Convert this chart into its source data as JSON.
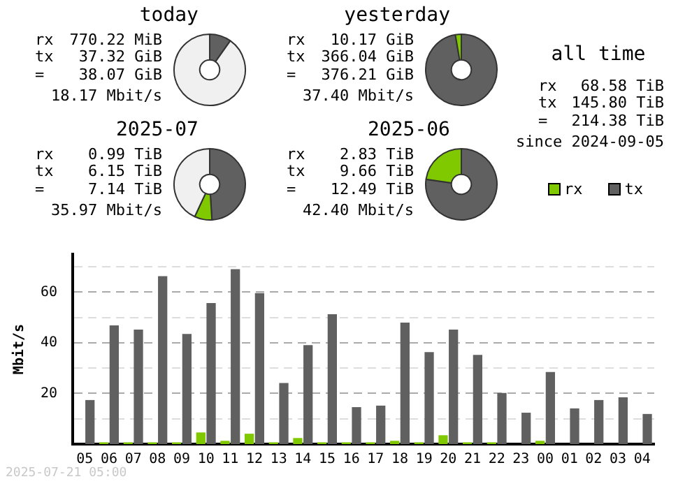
{
  "chart_data": [
    {
      "type": "donut",
      "title": "today",
      "categories": [
        null,
        null,
        null
      ],
      "values": [
        9.8,
        null,
        90
      ],
      "colors": [
        "#606060",
        "#80c800",
        "#f0f0f0"
      ],
      "annotations": [
        "rx",
        "770.22 MiB",
        "tx",
        "37.32 GiB",
        "=",
        "38.07 GiB",
        "18.17 Mbit/s"
      ]
    },
    {
      "type": "donut",
      "title": "yesterday",
      "categories": [
        null,
        null,
        null
      ],
      "values": [
        97.3,
        2.7,
        0
      ],
      "colors": [
        "#606060",
        "#80c800",
        "#f0f0f0"
      ],
      "annotations": [
        "rx",
        "10.17 GiB",
        "tx",
        "366.04 GiB",
        "=",
        "376.21 GiB",
        "37.40 Mbit/s"
      ]
    },
    {
      "type": "donut",
      "title": "2025-07",
      "categories": [
        null,
        null,
        null
      ],
      "values": [
        49,
        7.9,
        43.1
      ],
      "colors": [
        "#606060",
        "#80c800",
        "#f0f0f0"
      ],
      "annotations": [
        "rx",
        "0.99 TiB",
        "tx",
        "6.15 TiB",
        "=",
        "7.14 TiB",
        "35.97 Mbit/s"
      ]
    },
    {
      "type": "donut",
      "title": "2025-06",
      "categories": [
        null,
        null,
        null
      ],
      "values": [
        77.3,
        22.7,
        0
      ],
      "colors": [
        "#606060",
        "#80c800",
        "#f0f0f0"
      ],
      "annotations": [
        "rx",
        "2.83 TiB",
        "tx",
        "9.66 TiB",
        "=",
        "12.49 TiB",
        "42.40 Mbit/s"
      ]
    },
    {
      "type": "other",
      "title": "all time",
      "annotations": [
        "rx",
        "68.58 TiB",
        "tx",
        "145.80 TiB",
        "=",
        "214.38 TiB",
        "since 2024-09-05"
      ]
    },
    {
      "type": "bar",
      "ylabel": "Mbit/s",
      "categories": [
        "05",
        "06",
        "07",
        "08",
        "09",
        "10",
        "11",
        "12",
        "13",
        "14",
        "15",
        "16",
        "17",
        "18",
        "19",
        "20",
        "21",
        "22",
        "23",
        "00",
        "01",
        "02",
        "03",
        "04"
      ],
      "series": [
        {
          "name": "rx",
          "color": "#80c800",
          "values": [
            0,
            0.7,
            0.7,
            0.7,
            0.7,
            4.6,
            1.3,
            4.1,
            0.7,
            2.4,
            0.7,
            0.7,
            0.7,
            1.3,
            0.7,
            3.5,
            0.7,
            0.7,
            0,
            1.3,
            0,
            0,
            0,
            0
          ]
        },
        {
          "name": "tx",
          "color": "#606060",
          "values": [
            17.4,
            46.9,
            45.2,
            66.3,
            43.5,
            55.7,
            69.1,
            59.6,
            24.1,
            39.1,
            51.3,
            14.6,
            15.2,
            48.0,
            36.3,
            45.2,
            35.2,
            20.2,
            12.4,
            28.5,
            14.1,
            17.4,
            18.5,
            11.9
          ]
        }
      ],
      "ylim": [
        0,
        75
      ],
      "yticks": [
        {
          "value": 10,
          "label": null
        },
        20,
        {
          "value": 30,
          "label": null
        },
        40,
        {
          "value": 50,
          "label": null
        },
        60,
        {
          "value": 70,
          "label": null
        }
      ],
      "grid": true,
      "legend": "top right",
      "annotations": [
        "2025-07-21 05:00"
      ]
    }
  ]
}
